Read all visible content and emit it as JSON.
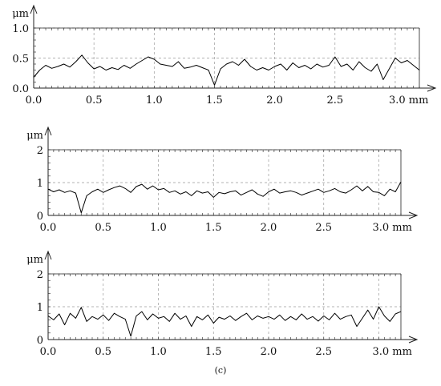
{
  "figure": {
    "caption": "(c)"
  },
  "chart_data": [
    {
      "type": "line",
      "ylabel": "μm",
      "x_unit": "mm",
      "xlim": [
        0.0,
        3.2
      ],
      "ylim": [
        0.0,
        1.0
      ],
      "xticks": [
        0.0,
        0.5,
        1.0,
        1.5,
        2.0,
        2.5,
        3.0
      ],
      "xtick_labels": [
        "0.0",
        "0.5",
        "1.0",
        "1.5",
        "2.0",
        "2.5",
        "3.0 mm"
      ],
      "yticks": [
        0.0,
        0.5,
        1.0
      ],
      "ytick_labels": [
        "0.0",
        "0.5",
        "1.0"
      ],
      "grid": true,
      "series": [
        {
          "x": [
            0.0,
            0.05,
            0.1,
            0.15,
            0.2,
            0.25,
            0.3,
            0.35,
            0.4,
            0.45,
            0.5,
            0.55,
            0.6,
            0.65,
            0.7,
            0.75,
            0.8,
            0.85,
            0.9,
            0.95,
            1.0,
            1.05,
            1.1,
            1.15,
            1.2,
            1.25,
            1.3,
            1.35,
            1.4,
            1.45,
            1.5,
            1.55,
            1.6,
            1.65,
            1.7,
            1.75,
            1.8,
            1.85,
            1.9,
            1.95,
            2.0,
            2.05,
            2.1,
            2.15,
            2.2,
            2.25,
            2.3,
            2.35,
            2.4,
            2.45,
            2.5,
            2.55,
            2.6,
            2.65,
            2.7,
            2.75,
            2.8,
            2.85,
            2.9,
            2.95,
            3.0,
            3.05,
            3.1,
            3.15,
            3.2
          ],
          "values": [
            0.18,
            0.3,
            0.38,
            0.33,
            0.36,
            0.4,
            0.35,
            0.44,
            0.55,
            0.42,
            0.32,
            0.36,
            0.3,
            0.34,
            0.31,
            0.38,
            0.33,
            0.4,
            0.46,
            0.52,
            0.48,
            0.4,
            0.38,
            0.36,
            0.44,
            0.33,
            0.35,
            0.38,
            0.34,
            0.3,
            0.05,
            0.32,
            0.4,
            0.44,
            0.38,
            0.48,
            0.36,
            0.3,
            0.34,
            0.3,
            0.36,
            0.4,
            0.3,
            0.42,
            0.34,
            0.38,
            0.32,
            0.4,
            0.35,
            0.38,
            0.52,
            0.36,
            0.4,
            0.3,
            0.44,
            0.34,
            0.28,
            0.4,
            0.14,
            0.32,
            0.5,
            0.42,
            0.46,
            0.38,
            0.3
          ]
        }
      ]
    },
    {
      "type": "line",
      "ylabel": "μm",
      "x_unit": "mm",
      "xlim": [
        0.0,
        3.2
      ],
      "ylim": [
        0,
        2
      ],
      "xticks": [
        0.0,
        0.5,
        1.0,
        1.5,
        2.0,
        2.5,
        3.0
      ],
      "xtick_labels": [
        "0.0",
        "0.5",
        "1.0",
        "1.5",
        "2.0",
        "2.5",
        "3.0 mm"
      ],
      "yticks": [
        0,
        1,
        2
      ],
      "ytick_labels": [
        "0",
        "1",
        "2"
      ],
      "grid": true,
      "series": [
        {
          "x": [
            0.0,
            0.05,
            0.1,
            0.15,
            0.2,
            0.25,
            0.3,
            0.35,
            0.4,
            0.45,
            0.5,
            0.55,
            0.6,
            0.65,
            0.7,
            0.75,
            0.8,
            0.85,
            0.9,
            0.95,
            1.0,
            1.05,
            1.1,
            1.15,
            1.2,
            1.25,
            1.3,
            1.35,
            1.4,
            1.45,
            1.5,
            1.55,
            1.6,
            1.65,
            1.7,
            1.75,
            1.8,
            1.85,
            1.9,
            1.95,
            2.0,
            2.05,
            2.1,
            2.15,
            2.2,
            2.25,
            2.3,
            2.35,
            2.4,
            2.45,
            2.5,
            2.55,
            2.6,
            2.65,
            2.7,
            2.75,
            2.8,
            2.85,
            2.9,
            2.95,
            3.0,
            3.05,
            3.1,
            3.15,
            3.2
          ],
          "values": [
            0.8,
            0.72,
            0.78,
            0.7,
            0.75,
            0.68,
            0.08,
            0.6,
            0.72,
            0.8,
            0.7,
            0.78,
            0.85,
            0.9,
            0.82,
            0.7,
            0.88,
            0.95,
            0.8,
            0.9,
            0.78,
            0.82,
            0.7,
            0.75,
            0.65,
            0.72,
            0.6,
            0.75,
            0.68,
            0.72,
            0.55,
            0.7,
            0.66,
            0.72,
            0.75,
            0.62,
            0.7,
            0.78,
            0.65,
            0.58,
            0.72,
            0.8,
            0.68,
            0.72,
            0.75,
            0.7,
            0.62,
            0.68,
            0.74,
            0.8,
            0.7,
            0.75,
            0.82,
            0.72,
            0.68,
            0.78,
            0.9,
            0.75,
            0.88,
            0.72,
            0.7,
            0.6,
            0.8,
            0.72,
            1.02
          ]
        }
      ]
    },
    {
      "type": "line",
      "ylabel": "μm",
      "x_unit": "mm",
      "xlim": [
        0.0,
        3.2
      ],
      "ylim": [
        0,
        2
      ],
      "xticks": [
        0.0,
        0.5,
        1.0,
        1.5,
        2.0,
        2.5,
        3.0
      ],
      "xtick_labels": [
        "0.0",
        "0.5",
        "1.0",
        "1.5",
        "2.0",
        "2.5",
        "3.0 mm"
      ],
      "yticks": [
        0,
        1,
        2
      ],
      "ytick_labels": [
        "0",
        "1",
        "2"
      ],
      "grid": true,
      "series": [
        {
          "x": [
            0.0,
            0.05,
            0.1,
            0.15,
            0.2,
            0.25,
            0.3,
            0.35,
            0.4,
            0.45,
            0.5,
            0.55,
            0.6,
            0.65,
            0.7,
            0.75,
            0.8,
            0.85,
            0.9,
            0.95,
            1.0,
            1.05,
            1.1,
            1.15,
            1.2,
            1.25,
            1.3,
            1.35,
            1.4,
            1.45,
            1.5,
            1.55,
            1.6,
            1.65,
            1.7,
            1.75,
            1.8,
            1.85,
            1.9,
            1.95,
            2.0,
            2.05,
            2.1,
            2.15,
            2.2,
            2.25,
            2.3,
            2.35,
            2.4,
            2.45,
            2.5,
            2.55,
            2.6,
            2.65,
            2.7,
            2.75,
            2.8,
            2.85,
            2.9,
            2.95,
            3.0,
            3.05,
            3.1,
            3.15,
            3.2
          ],
          "values": [
            0.72,
            0.6,
            0.78,
            0.45,
            0.8,
            0.65,
            0.98,
            0.55,
            0.7,
            0.62,
            0.75,
            0.58,
            0.8,
            0.7,
            0.62,
            0.1,
            0.72,
            0.85,
            0.6,
            0.78,
            0.65,
            0.7,
            0.55,
            0.8,
            0.62,
            0.72,
            0.4,
            0.7,
            0.6,
            0.75,
            0.5,
            0.68,
            0.62,
            0.72,
            0.58,
            0.7,
            0.8,
            0.6,
            0.72,
            0.65,
            0.7,
            0.62,
            0.75,
            0.58,
            0.7,
            0.6,
            0.78,
            0.62,
            0.7,
            0.56,
            0.72,
            0.6,
            0.8,
            0.62,
            0.7,
            0.75,
            0.4,
            0.65,
            0.9,
            0.62,
            1.0,
            0.72,
            0.55,
            0.78,
            0.85
          ]
        }
      ]
    }
  ]
}
